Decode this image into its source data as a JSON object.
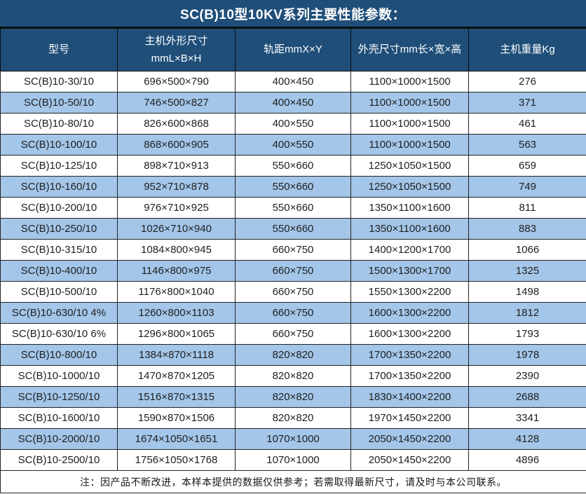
{
  "title": "SC(B)10型10KV系列主要性能参数：",
  "colors": {
    "header_bg": "#1F4E79",
    "header_text": "#ffffff",
    "alt_row_bg": "#A3C6E9",
    "body_text": "#212121",
    "border": "#232323"
  },
  "table": {
    "columns": [
      {
        "line1": "型号",
        "line2": ""
      },
      {
        "line1": "主机外形尺寸",
        "line2": "mmL×B×H"
      },
      {
        "line1": "轨距mmX×Y",
        "line2": ""
      },
      {
        "line1": "外壳尺寸mm长×宽×高",
        "line2": ""
      },
      {
        "line1": "主机重量Kg",
        "line2": ""
      }
    ],
    "rows": [
      [
        "SC(B)10-30/10",
        "696×500×790",
        "400×450",
        "1100×1000×1500",
        "276"
      ],
      [
        "SC(B)10-50/10",
        "746×500×827",
        "400×450",
        "1100×1000×1500",
        "371"
      ],
      [
        "SC(B)10-80/10",
        "826×600×868",
        "400×550",
        "1100×1000×1500",
        "461"
      ],
      [
        "SC(B)10-100/10",
        "868×600×905",
        "400×550",
        "1100×1000×1500",
        "563"
      ],
      [
        "SC(B)10-125/10",
        "898×710×913",
        "550×660",
        "1250×1050×1500",
        "659"
      ],
      [
        "SC(B)10-160/10",
        "952×710×878",
        "550×660",
        "1250×1050×1500",
        "749"
      ],
      [
        "SC(B)10-200/10",
        "976×710×925",
        "550×660",
        "1350×1100×1600",
        "811"
      ],
      [
        "SC(B)10-250/10",
        "1026×710×940",
        "550×660",
        "1350×1100×1600",
        "883"
      ],
      [
        "SC(B)10-315/10",
        "1084×800×945",
        "660×750",
        "1400×1200×1700",
        "1066"
      ],
      [
        "SC(B)10-400/10",
        "1146×800×975",
        "660×750",
        "1500×1300×1700",
        "1325"
      ],
      [
        "SC(B)10-500/10",
        "1176×800×1040",
        "660×750",
        "1550×1300×2200",
        "1498"
      ],
      [
        "SC(B)10-630/10 4%",
        "1260×800×1103",
        "660×750",
        "1600×1300×2200",
        "1812"
      ],
      [
        "SC(B)10-630/10 6%",
        "1296×800×1065",
        "660×750",
        "1600×1300×2200",
        "1793"
      ],
      [
        "SC(B)10-800/10",
        "1384×870×1118",
        "820×820",
        "1700×1350×2200",
        "1978"
      ],
      [
        "SC(B)10-1000/10",
        "1470×870×1205",
        "820×820",
        "1700×1350×2200",
        "2390"
      ],
      [
        "SC(B)10-1250/10",
        "1516×870×1315",
        "820×820",
        "1830×1400×2200",
        "2688"
      ],
      [
        "SC(B)10-1600/10",
        "1590×870×1506",
        "820×820",
        "1970×1450×2200",
        "3341"
      ],
      [
        "SC(B)10-2000/10",
        "1674×1050×1651",
        "1070×1000",
        "2050×1450×2200",
        "4128"
      ],
      [
        "SC(B)10-2500/10",
        "1756×1050×1768",
        "1070×1000",
        "2050×1450×2200",
        "4896"
      ]
    ]
  },
  "note": "注：因产品不断改进，本样本提供的数据仅供参考；若需取得最新尺寸，请及时与本公司联系。"
}
